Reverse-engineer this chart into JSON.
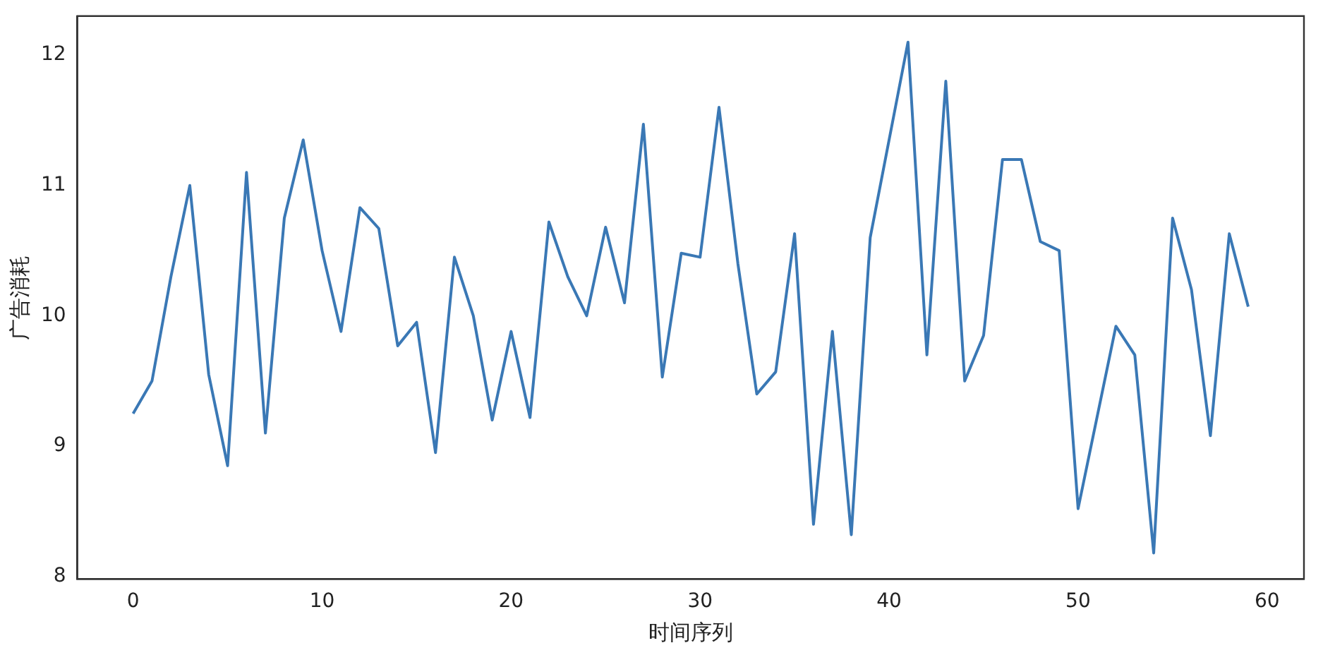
{
  "chart_data": {
    "type": "line",
    "xlabel": "时间序列",
    "ylabel": "广告消耗",
    "x": [
      0,
      1,
      2,
      3,
      4,
      5,
      6,
      7,
      8,
      9,
      10,
      11,
      12,
      13,
      14,
      15,
      16,
      17,
      18,
      19,
      20,
      21,
      22,
      23,
      24,
      25,
      26,
      27,
      28,
      29,
      30,
      31,
      32,
      33,
      34,
      35,
      36,
      37,
      38,
      39,
      40,
      41,
      42,
      43,
      44,
      45,
      46,
      47,
      48,
      49,
      50,
      51,
      52,
      53,
      54,
      55,
      56,
      57,
      58,
      59
    ],
    "series": [
      {
        "color": "#3a78b5",
        "values": [
          9.25,
          9.5,
          10.3,
          11.0,
          9.55,
          8.85,
          11.1,
          9.1,
          10.75,
          11.35,
          10.5,
          9.88,
          10.83,
          10.67,
          9.77,
          9.95,
          8.95,
          10.45,
          10.0,
          9.2,
          9.88,
          9.22,
          10.72,
          10.3,
          10.0,
          10.68,
          10.1,
          11.47,
          9.53,
          10.48,
          10.45,
          11.6,
          10.4,
          9.4,
          9.57,
          10.63,
          8.4,
          9.88,
          8.32,
          10.6,
          11.35,
          12.1,
          9.7,
          11.8,
          9.5,
          9.85,
          11.2,
          11.2,
          10.57,
          10.5,
          8.52,
          9.22,
          9.92,
          9.7,
          8.18,
          10.75,
          10.2,
          9.08,
          10.63,
          10.07
        ]
      }
    ],
    "xlim": [
      -2.95,
      61.95
    ],
    "xticks": [
      0,
      10,
      20,
      30,
      40,
      50,
      60
    ],
    "ylim": [
      7.98,
      12.3
    ],
    "yticks": [
      8,
      9,
      10,
      11,
      12
    ],
    "grid": false,
    "legend": false,
    "marker": "none",
    "line_style": "solid"
  }
}
